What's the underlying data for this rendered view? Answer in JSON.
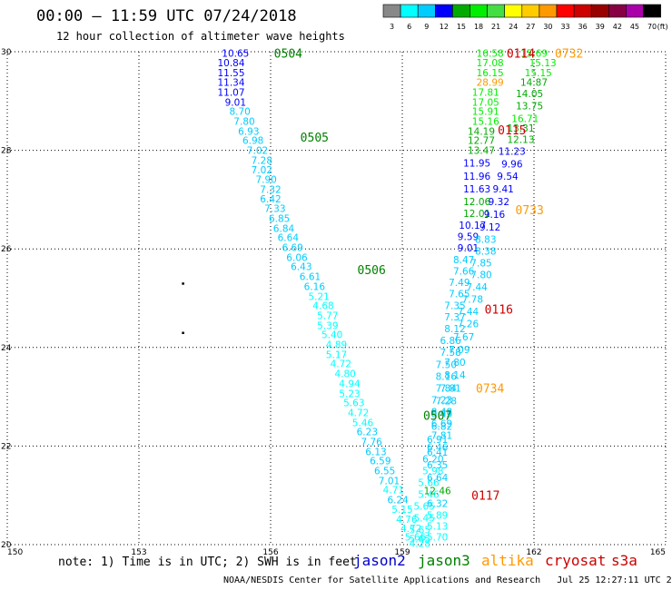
{
  "title": "00:00 – 11:59 UTC 07/24/2018",
  "subtitle": "12 hour collection of altimeter wave heights",
  "note": "note: 1) Time is in UTC; 2) SWH is in feet",
  "credit": "NOAA/NESDIS Center for Satellite Applications and Research",
  "generated": "Jul 25 12:27:11 UTC 2018",
  "satellites": [
    {
      "name": "jason2",
      "color": "#0000cc"
    },
    {
      "name": "jason3",
      "color": "#008000"
    },
    {
      "name": "altika",
      "color": "#ff9900"
    },
    {
      "name": "cryosat",
      "color": "#cc0000"
    },
    {
      "name": "s3a",
      "color": "#cc0000"
    }
  ],
  "colorbar": {
    "unit": "(ft)",
    "labels": [
      "3",
      "6",
      "9",
      "12",
      "15",
      "18",
      "21",
      "24",
      "27",
      "30",
      "33",
      "36",
      "39",
      "42",
      "45",
      "70"
    ],
    "colors": [
      "#888888",
      "#00ffff",
      "#00ccff",
      "#0000ff",
      "#00aa00",
      "#00ee00",
      "#44dd44",
      "#ffff00",
      "#ffcc00",
      "#ff9900",
      "#ff0000",
      "#cc0000",
      "#990000",
      "#880044",
      "#aa00aa",
      "#000000"
    ]
  },
  "chart_data": {
    "type": "scatter",
    "xlim": [
      150,
      165
    ],
    "ylim": [
      20,
      30
    ],
    "xticks": [
      "150",
      "153",
      "156",
      "159",
      "162",
      "165"
    ],
    "yticks": [
      "20",
      "22",
      "24",
      "26",
      "28",
      "30"
    ],
    "grid": true,
    "time_labels": [
      {
        "text": "0504",
        "lon": 156.4,
        "lat": 29.97,
        "color": "#008000"
      },
      {
        "text": "0505",
        "lon": 157.0,
        "lat": 28.27,
        "color": "#008000"
      },
      {
        "text": "0506",
        "lon": 158.3,
        "lat": 25.58,
        "color": "#008000"
      },
      {
        "text": "0507",
        "lon": 159.8,
        "lat": 22.62,
        "color": "#008000"
      },
      {
        "text": "0114",
        "lon": 161.7,
        "lat": 29.97,
        "color": "#cc0000"
      },
      {
        "text": "0732",
        "lon": 162.8,
        "lat": 29.97,
        "color": "#ff9900"
      },
      {
        "text": "0115",
        "lon": 161.5,
        "lat": 28.42,
        "color": "#cc0000"
      },
      {
        "text": "0733",
        "lon": 161.9,
        "lat": 26.8,
        "color": "#ff9900"
      },
      {
        "text": "0116",
        "lon": 161.2,
        "lat": 24.78,
        "color": "#cc0000"
      },
      {
        "text": "0734",
        "lon": 161.0,
        "lat": 23.18,
        "color": "#ff9900"
      },
      {
        "text": "0117",
        "lon": 160.9,
        "lat": 21.0,
        "color": "#cc0000"
      }
    ],
    "series": [
      {
        "name": "jason3",
        "points": [
          {
            "lon": 155.2,
            "lat": 29.97,
            "swh": "10.65"
          },
          {
            "lon": 155.1,
            "lat": 29.78,
            "swh": "10.84"
          },
          {
            "lon": 155.1,
            "lat": 29.58,
            "swh": "11.55"
          },
          {
            "lon": 155.1,
            "lat": 29.38,
            "swh": "11.34"
          },
          {
            "lon": 155.1,
            "lat": 29.18,
            "swh": "11.07"
          },
          {
            "lon": 155.2,
            "lat": 28.98,
            "swh": "9.01"
          },
          {
            "lon": 155.3,
            "lat": 28.79,
            "swh": "8.70"
          },
          {
            "lon": 155.4,
            "lat": 28.59,
            "swh": "7.80"
          },
          {
            "lon": 155.5,
            "lat": 28.39,
            "swh": "6.93"
          },
          {
            "lon": 155.6,
            "lat": 28.2,
            "swh": "6.98"
          },
          {
            "lon": 155.7,
            "lat": 28.0,
            "swh": "7.02"
          },
          {
            "lon": 155.8,
            "lat": 27.8,
            "swh": "7.28"
          },
          {
            "lon": 155.8,
            "lat": 27.61,
            "swh": "7.02"
          },
          {
            "lon": 155.9,
            "lat": 27.41,
            "swh": "7.90"
          },
          {
            "lon": 156.0,
            "lat": 27.21,
            "swh": "7.32"
          },
          {
            "lon": 156.0,
            "lat": 27.02,
            "swh": "6.42"
          },
          {
            "lon": 156.1,
            "lat": 26.82,
            "swh": "7.33"
          },
          {
            "lon": 156.2,
            "lat": 26.62,
            "swh": "6.85"
          },
          {
            "lon": 156.3,
            "lat": 26.42,
            "swh": "6.84"
          },
          {
            "lon": 156.4,
            "lat": 26.23,
            "swh": "6.64"
          },
          {
            "lon": 156.5,
            "lat": 26.03,
            "swh": "6.69"
          },
          {
            "lon": 156.6,
            "lat": 25.83,
            "swh": "6.06"
          },
          {
            "lon": 156.7,
            "lat": 25.64,
            "swh": "6.43"
          },
          {
            "lon": 156.9,
            "lat": 25.44,
            "swh": "6.61"
          },
          {
            "lon": 157.0,
            "lat": 25.24,
            "swh": "6.16"
          },
          {
            "lon": 157.1,
            "lat": 25.04,
            "swh": "5.21"
          },
          {
            "lon": 157.2,
            "lat": 24.85,
            "swh": "4.68"
          },
          {
            "lon": 157.3,
            "lat": 24.65,
            "swh": "5.77"
          },
          {
            "lon": 157.3,
            "lat": 24.45,
            "swh": "5.39"
          },
          {
            "lon": 157.4,
            "lat": 24.26,
            "swh": "5.40"
          },
          {
            "lon": 157.5,
            "lat": 24.06,
            "swh": "4.89"
          },
          {
            "lon": 157.5,
            "lat": 23.86,
            "swh": "5.17"
          },
          {
            "lon": 157.6,
            "lat": 23.67,
            "swh": "4.72"
          },
          {
            "lon": 157.7,
            "lat": 23.47,
            "swh": "4.80"
          },
          {
            "lon": 157.8,
            "lat": 23.27,
            "swh": "4.94"
          },
          {
            "lon": 157.8,
            "lat": 23.07,
            "swh": "5.23"
          },
          {
            "lon": 157.9,
            "lat": 22.88,
            "swh": "5.63"
          },
          {
            "lon": 158.0,
            "lat": 22.68,
            "swh": "4.72"
          },
          {
            "lon": 158.1,
            "lat": 22.48,
            "swh": "5.46"
          },
          {
            "lon": 158.2,
            "lat": 22.29,
            "swh": "6.23"
          },
          {
            "lon": 158.3,
            "lat": 22.09,
            "swh": "7.76"
          },
          {
            "lon": 158.4,
            "lat": 21.89,
            "swh": "6.13"
          },
          {
            "lon": 158.5,
            "lat": 21.7,
            "swh": "6.59"
          },
          {
            "lon": 158.6,
            "lat": 21.5,
            "swh": "6.55"
          },
          {
            "lon": 158.7,
            "lat": 21.3,
            "swh": "7.01"
          },
          {
            "lon": 158.8,
            "lat": 21.11,
            "swh": "4.71"
          },
          {
            "lon": 158.9,
            "lat": 20.91,
            "swh": "6.24"
          },
          {
            "lon": 159.0,
            "lat": 20.72,
            "swh": "5.15"
          },
          {
            "lon": 159.1,
            "lat": 20.52,
            "swh": "4.76"
          },
          {
            "lon": 159.2,
            "lat": 20.33,
            "swh": "4.72"
          },
          {
            "lon": 159.3,
            "lat": 20.16,
            "swh": "5.66"
          },
          {
            "lon": 159.4,
            "lat": 20.03,
            "swh": "4.28"
          }
        ]
      },
      {
        "name": "cryosat",
        "points": [
          {
            "lon": 161.0,
            "lat": 29.97,
            "swh": "16.58"
          },
          {
            "lon": 161.0,
            "lat": 29.78,
            "swh": "17.08"
          },
          {
            "lon": 161.0,
            "lat": 29.58,
            "swh": "16.15"
          },
          {
            "lon": 161.0,
            "lat": 29.38,
            "swh": "28.99"
          },
          {
            "lon": 160.9,
            "lat": 29.18,
            "swh": "17.81"
          },
          {
            "lon": 160.9,
            "lat": 28.98,
            "swh": "17.05"
          },
          {
            "lon": 160.9,
            "lat": 28.79,
            "swh": "15.91"
          },
          {
            "lon": 160.9,
            "lat": 28.59,
            "swh": "15.16"
          },
          {
            "lon": 160.8,
            "lat": 28.39,
            "swh": "14.19"
          },
          {
            "lon": 160.8,
            "lat": 28.2,
            "swh": "12.77"
          },
          {
            "lon": 160.8,
            "lat": 28.0,
            "swh": "13.47"
          },
          {
            "lon": 160.7,
            "lat": 27.74,
            "swh": "11.95"
          },
          {
            "lon": 160.7,
            "lat": 27.48,
            "swh": "11.96"
          },
          {
            "lon": 160.7,
            "lat": 27.22,
            "swh": "11.63"
          },
          {
            "lon": 160.7,
            "lat": 26.96,
            "swh": "12.06"
          },
          {
            "lon": 160.7,
            "lat": 26.72,
            "swh": "12.01"
          },
          {
            "lon": 160.6,
            "lat": 26.48,
            "swh": "10.17"
          },
          {
            "lon": 160.5,
            "lat": 26.25,
            "swh": "9.59"
          },
          {
            "lon": 160.5,
            "lat": 26.02,
            "swh": "9.01"
          },
          {
            "lon": 160.4,
            "lat": 25.78,
            "swh": "8.47"
          },
          {
            "lon": 160.4,
            "lat": 25.55,
            "swh": "7.66"
          },
          {
            "lon": 160.3,
            "lat": 25.32,
            "swh": "7.49"
          },
          {
            "lon": 160.3,
            "lat": 25.09,
            "swh": "7.65"
          },
          {
            "lon": 160.2,
            "lat": 24.85,
            "swh": "7.35"
          },
          {
            "lon": 160.2,
            "lat": 24.62,
            "swh": "7.37"
          },
          {
            "lon": 160.2,
            "lat": 24.38,
            "swh": "8.12"
          },
          {
            "lon": 160.1,
            "lat": 24.14,
            "swh": "6.86"
          },
          {
            "lon": 160.1,
            "lat": 23.9,
            "swh": "7.58"
          },
          {
            "lon": 160.0,
            "lat": 23.66,
            "swh": "7.50"
          },
          {
            "lon": 160.0,
            "lat": 23.42,
            "swh": "8.16"
          },
          {
            "lon": 160.0,
            "lat": 23.18,
            "swh": "7.84"
          },
          {
            "lon": 159.9,
            "lat": 22.94,
            "swh": "7.23"
          },
          {
            "lon": 159.9,
            "lat": 22.7,
            "swh": "8.48"
          },
          {
            "lon": 159.9,
            "lat": 22.46,
            "swh": "6.69"
          },
          {
            "lon": 159.9,
            "lat": 22.22,
            "swh": "7.81"
          },
          {
            "lon": 159.8,
            "lat": 21.98,
            "swh": "6.46"
          },
          {
            "lon": 159.7,
            "lat": 21.74,
            "swh": "6.20"
          },
          {
            "lon": 159.7,
            "lat": 21.5,
            "swh": "5.98"
          },
          {
            "lon": 159.6,
            "lat": 21.26,
            "swh": "5.66"
          },
          {
            "lon": 159.6,
            "lat": 21.02,
            "swh": "5.46"
          },
          {
            "lon": 159.5,
            "lat": 20.78,
            "swh": "5.65"
          },
          {
            "lon": 159.5,
            "lat": 20.54,
            "swh": "5.45"
          },
          {
            "lon": 159.4,
            "lat": 20.3,
            "swh": "5.65"
          },
          {
            "lon": 159.4,
            "lat": 20.12,
            "swh": "5.65"
          }
        ]
      },
      {
        "name": "altika",
        "points": [
          {
            "lon": 162.0,
            "lat": 29.97,
            "swh": "15.69"
          },
          {
            "lon": 162.2,
            "lat": 29.78,
            "swh": "15.13"
          },
          {
            "lon": 162.1,
            "lat": 29.58,
            "swh": "15.15"
          },
          {
            "lon": 162.0,
            "lat": 29.38,
            "swh": "14.87"
          },
          {
            "lon": 161.9,
            "lat": 29.15,
            "swh": "14.05"
          },
          {
            "lon": 161.9,
            "lat": 28.9,
            "swh": "13.75"
          },
          {
            "lon": 161.8,
            "lat": 28.65,
            "swh": "16.71"
          },
          {
            "lon": 161.7,
            "lat": 28.45,
            "swh": "13.31"
          },
          {
            "lon": 161.7,
            "lat": 28.22,
            "swh": "12.13"
          },
          {
            "lon": 161.5,
            "lat": 27.98,
            "swh": "11.23"
          },
          {
            "lon": 161.5,
            "lat": 27.73,
            "swh": "9.96"
          },
          {
            "lon": 161.4,
            "lat": 27.48,
            "swh": "9.54"
          },
          {
            "lon": 161.3,
            "lat": 27.22,
            "swh": "9.41"
          },
          {
            "lon": 161.2,
            "lat": 26.96,
            "swh": "9.32"
          },
          {
            "lon": 161.1,
            "lat": 26.7,
            "swh": "9.16"
          },
          {
            "lon": 161.0,
            "lat": 26.45,
            "swh": "9.12"
          },
          {
            "lon": 160.9,
            "lat": 26.2,
            "swh": "8.83"
          },
          {
            "lon": 160.9,
            "lat": 25.96,
            "swh": "8.38"
          },
          {
            "lon": 160.8,
            "lat": 25.72,
            "swh": "7.85"
          },
          {
            "lon": 160.8,
            "lat": 25.48,
            "swh": "7.80"
          },
          {
            "lon": 160.7,
            "lat": 25.23,
            "swh": "7.44"
          },
          {
            "lon": 160.6,
            "lat": 24.98,
            "swh": "7.78"
          },
          {
            "lon": 160.5,
            "lat": 24.73,
            "swh": "7.44"
          },
          {
            "lon": 160.5,
            "lat": 24.48,
            "swh": "7.26"
          },
          {
            "lon": 160.4,
            "lat": 24.22,
            "swh": "7.67"
          },
          {
            "lon": 160.3,
            "lat": 23.96,
            "swh": "7.09"
          },
          {
            "lon": 160.2,
            "lat": 23.7,
            "swh": "7.80"
          },
          {
            "lon": 160.2,
            "lat": 23.44,
            "swh": "8.14"
          },
          {
            "lon": 160.1,
            "lat": 23.18,
            "swh": "7.81"
          },
          {
            "lon": 160.0,
            "lat": 22.92,
            "swh": "7.28"
          },
          {
            "lon": 159.9,
            "lat": 22.66,
            "swh": "8.43"
          },
          {
            "lon": 159.9,
            "lat": 22.4,
            "swh": "6.82"
          },
          {
            "lon": 159.8,
            "lat": 22.14,
            "swh": "6.91"
          },
          {
            "lon": 159.8,
            "lat": 21.88,
            "swh": "6.41"
          },
          {
            "lon": 159.8,
            "lat": 21.62,
            "swh": "6.35"
          },
          {
            "lon": 159.8,
            "lat": 21.36,
            "swh": "6.64"
          },
          {
            "lon": 159.8,
            "lat": 21.1,
            "swh": "12.46"
          },
          {
            "lon": 159.8,
            "lat": 20.84,
            "swh": "6.32"
          },
          {
            "lon": 159.8,
            "lat": 20.6,
            "swh": "5.89"
          },
          {
            "lon": 159.8,
            "lat": 20.38,
            "swh": "5.13"
          },
          {
            "lon": 159.8,
            "lat": 20.16,
            "swh": "5.70"
          }
        ]
      }
    ],
    "markers": [
      {
        "lon": 154.0,
        "lat": 25.3
      },
      {
        "lon": 154.0,
        "lat": 24.3
      }
    ]
  }
}
